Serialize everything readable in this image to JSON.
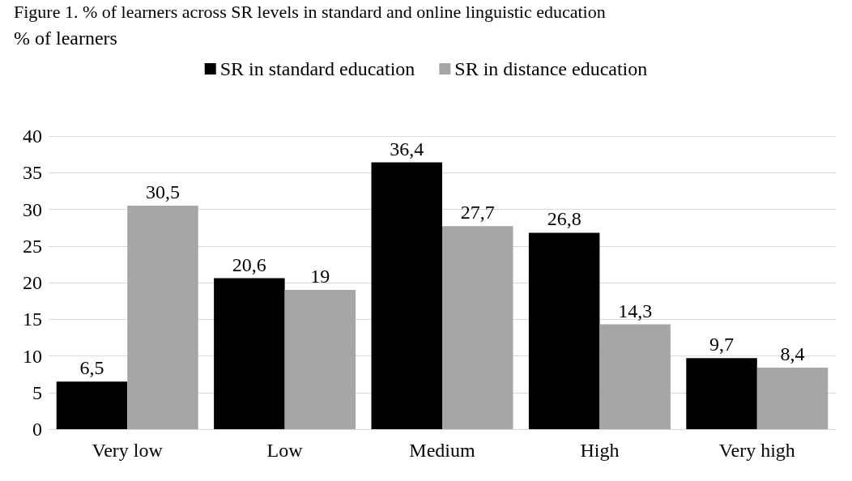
{
  "chart_data": {
    "type": "bar",
    "title": "Figure 1. % of learners across SR levels in standard and online linguistic education",
    "ylabel": "% of learners",
    "categories": [
      "Very low",
      "Low",
      "Medium",
      "High",
      "Very high"
    ],
    "series": [
      {
        "name": "SR in standard education",
        "color": "#000000",
        "values": [
          6.5,
          20.6,
          36.4,
          26.8,
          9.7
        ],
        "value_labels": [
          "6,5",
          "20,6",
          "36,4",
          "26,8",
          "9,7"
        ]
      },
      {
        "name": "SR in distance education",
        "color": "#a6a6a6",
        "values": [
          30.5,
          19,
          27.7,
          14.3,
          8.4
        ],
        "value_labels": [
          "30,5",
          "19",
          "27,7",
          "14,3",
          "8,4"
        ]
      }
    ],
    "ylim": [
      0,
      40
    ],
    "yticks": [
      0,
      5,
      10,
      15,
      20,
      25,
      30,
      35,
      40
    ],
    "grid": "y",
    "legend": "top"
  }
}
